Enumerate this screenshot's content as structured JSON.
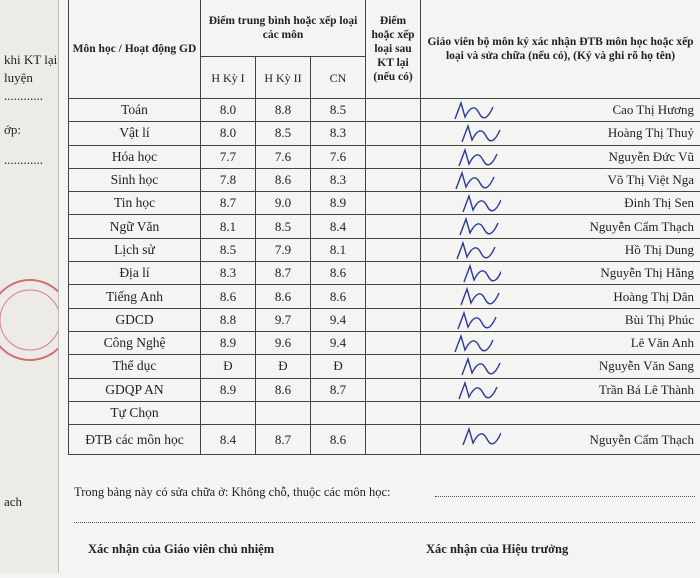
{
  "margin": {
    "lines": [
      "khi KT lại",
      "luyện",
      "............",
      "ớp:",
      "............",
      "ach"
    ]
  },
  "table": {
    "headers": {
      "subject": "Môn học / Hoạt động GD",
      "average": "Điểm trung bình hoặc xếp loại các môn",
      "terms": [
        "H Kỳ I",
        "H Kỳ II",
        "CN"
      ],
      "retest": "Điểm hoặc xếp loại sau KT lại (nếu có)",
      "teacher": "Giáo viên bộ môn ký xác nhận ĐTB môn học hoặc xếp loại và sửa chữa (nếu có), (Ký và ghi rõ họ tên)"
    },
    "rows": [
      {
        "subject": "Toán",
        "scores": [
          "8.0",
          "8.8",
          "8.5"
        ],
        "teacher": "Cao Thị Hương"
      },
      {
        "subject": "Vật lí",
        "scores": [
          "8.0",
          "8.5",
          "8.3"
        ],
        "teacher": "Hoàng Thị Thuỷ"
      },
      {
        "subject": "Hóa học",
        "scores": [
          "7.7",
          "7.6",
          "7.6"
        ],
        "teacher": "Nguyễn Đức Vũ"
      },
      {
        "subject": "Sinh học",
        "scores": [
          "7.8",
          "8.6",
          "8.3"
        ],
        "teacher": "Võ Thị Việt Nga"
      },
      {
        "subject": "Tin học",
        "scores": [
          "8.7",
          "9.0",
          "8.9"
        ],
        "teacher": "Đinh Thị Sen"
      },
      {
        "subject": "Ngữ Văn",
        "scores": [
          "8.1",
          "8.5",
          "8.4"
        ],
        "teacher": "Nguyễn Cẩm Thạch"
      },
      {
        "subject": "Lịch sử",
        "scores": [
          "8.5",
          "7.9",
          "8.1"
        ],
        "teacher": "Hồ Thị Dung"
      },
      {
        "subject": "Địa lí",
        "scores": [
          "8.3",
          "8.7",
          "8.6"
        ],
        "teacher": "Nguyễn Thị Hằng"
      },
      {
        "subject": "Tiếng Anh",
        "scores": [
          "8.6",
          "8.6",
          "8.6"
        ],
        "teacher": "Hoàng Thị Dân"
      },
      {
        "subject": "GDCD",
        "scores": [
          "8.8",
          "9.7",
          "9.4"
        ],
        "teacher": "Bùi Thị Phúc"
      },
      {
        "subject": "Công Nghệ",
        "scores": [
          "8.9",
          "9.6",
          "9.4"
        ],
        "teacher": "Lê Văn Anh"
      },
      {
        "subject": "Thể dục",
        "scores": [
          "Đ",
          "Đ",
          "Đ"
        ],
        "teacher": "Nguyễn Văn Sang"
      },
      {
        "subject": "GDQP AN",
        "scores": [
          "8.9",
          "8.6",
          "8.7"
        ],
        "teacher": "Trần Bá Lê Thành"
      },
      {
        "subject": "Tự Chọn"
      },
      {
        "subject": "ĐTB các môn học",
        "scores": [
          "8.4",
          "8.7",
          "8.6"
        ],
        "teacher": "Nguyễn Cẩm Thạch"
      }
    ]
  },
  "footer": {
    "correction": "Trong bảng này có sửa chữa ở: Không chỗ, thuộc các môn học:",
    "homeroom": "Xác nhận của Giáo viên chủ nhiệm",
    "principal": "Xác nhận của Hiệu trưởng"
  }
}
